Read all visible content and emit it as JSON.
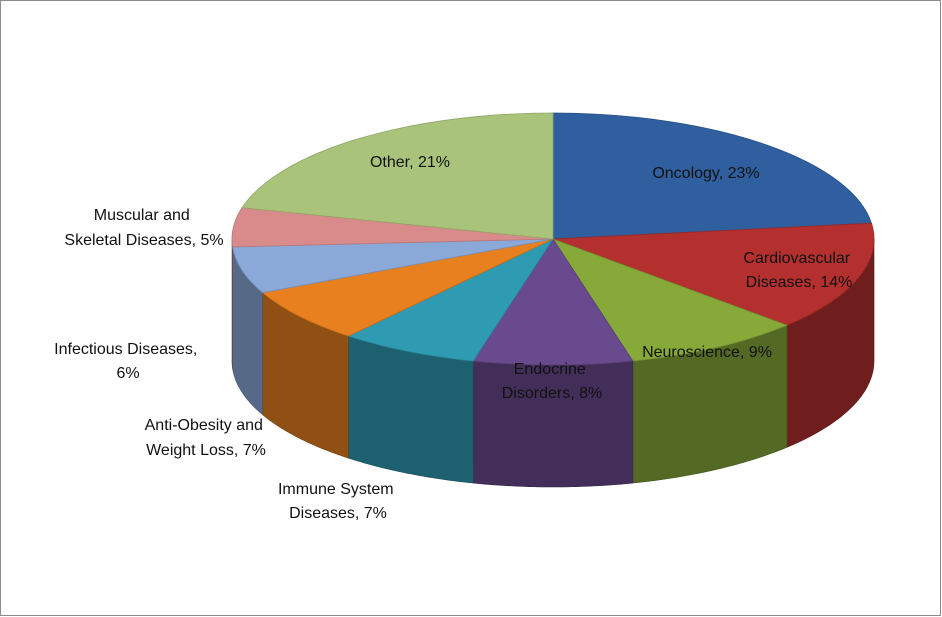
{
  "chart_data": {
    "type": "pie",
    "style": "3d",
    "title": "",
    "slices": [
      {
        "label": "Oncology, 23%",
        "value": 23,
        "color": "#2f5f9e"
      },
      {
        "label": "Cardiovascular Diseases, 14%",
        "value": 14,
        "color": "#b3302e"
      },
      {
        "label": "Neuroscience, 9%",
        "value": 9,
        "color": "#86a93a"
      },
      {
        "label": "Endocrine Disorders, 8%",
        "value": 8,
        "color": "#6a4a8e"
      },
      {
        "label": "Immune System Diseases, 7%",
        "value": 7,
        "color": "#2f9bb3"
      },
      {
        "label": "Anti-Obesity and Weight Loss, 7%",
        "value": 7,
        "color": "#e8801f"
      },
      {
        "label": "Infectious Diseases, 6%",
        "value": 6,
        "color": "#8aa9d9"
      },
      {
        "label": "Muscular and Skeletal Diseases, 5%",
        "value": 5,
        "color": "#d98b8b"
      },
      {
        "label": "Other, 21%",
        "value": 21,
        "color": "#a9c47a"
      }
    ],
    "labels": {
      "oncology": [
        "Oncology, 23%"
      ],
      "cardio": [
        "Cardiovascular",
        "Diseases, 14%"
      ],
      "neuro": [
        "Neuroscience, 9%"
      ],
      "endocrine": [
        "Endocrine",
        "Disorders, 8%"
      ],
      "immune": [
        "Immune System",
        "Diseases, 7%"
      ],
      "obesity": [
        "Anti-Obesity and",
        "Weight Loss, 7%"
      ],
      "infectious": [
        "Infectious Diseases,",
        "6%"
      ],
      "muscular": [
        "Muscular and",
        "Skeletal Diseases, 5%"
      ],
      "other": [
        "Other, 21%"
      ]
    }
  }
}
